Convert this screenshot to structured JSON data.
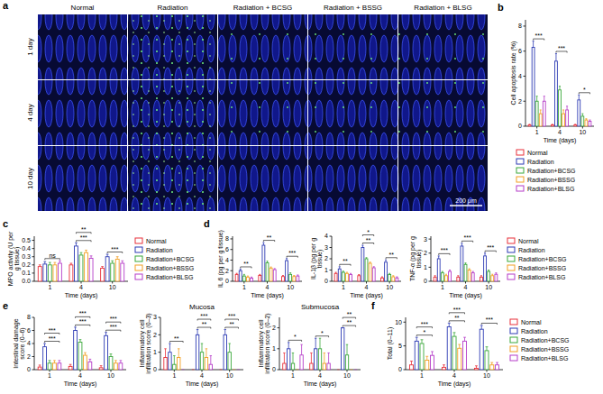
{
  "image_panel": {
    "panel": "a",
    "columns": [
      "Normal",
      "Radiation",
      "Radiation + BCSG",
      "Radiation + BSSG",
      "Radiation + BLSG"
    ],
    "rows": [
      "1 day",
      "4 day",
      "10 day"
    ],
    "scale_bar": "200 μm"
  },
  "chart_data": [
    {
      "type": "bar",
      "panel": "b",
      "y_label": "Cell apoptosis rate (%)",
      "x_label": "Time (days)",
      "categories": [
        "1",
        "4",
        "10"
      ],
      "ylim": [
        0,
        8.5
      ],
      "yticks": [
        0,
        2,
        4,
        6,
        8
      ],
      "legend": "bottom",
      "series": [
        {
          "name": "Normal",
          "color": "#e8303a",
          "values": [
            0.1,
            0.1,
            0.1
          ],
          "errors": [
            0.05,
            0.05,
            0.05
          ]
        },
        {
          "name": "Radiation",
          "color": "#2d3bb4",
          "values": [
            6.3,
            5.2,
            2.1
          ],
          "errors": [
            0.5,
            0.6,
            0.4
          ]
        },
        {
          "name": "Radiation+BCSG",
          "color": "#3aa83a",
          "values": [
            2.0,
            2.9,
            0.8
          ],
          "errors": [
            0.4,
            0.3,
            0.2
          ]
        },
        {
          "name": "Radiation+BSSG",
          "color": "#f2a024",
          "values": [
            1.0,
            1.0,
            0.5
          ],
          "errors": [
            0.3,
            0.3,
            0.1
          ]
        },
        {
          "name": "Radiation+BLSG",
          "color": "#b53cc8",
          "values": [
            2.0,
            1.3,
            0.4
          ],
          "errors": [
            0.4,
            0.3,
            0.1
          ]
        }
      ],
      "annotations": [
        {
          "x": "1",
          "text": "***"
        },
        {
          "x": "4",
          "text": "***"
        },
        {
          "x": "10",
          "text": "*"
        }
      ]
    },
    {
      "type": "bar",
      "panel": "c",
      "y_label": "MPO activity (U per g tissue)",
      "x_label": "Time (days)",
      "categories": [
        "1",
        "4",
        "10"
      ],
      "ylim": [
        0,
        0.55
      ],
      "yticks": [
        {
          "value": 0,
          "label": "0.0"
        },
        {
          "value": 0.1,
          "label": "0.1"
        },
        {
          "value": 0.2,
          "label": "0.2"
        },
        {
          "value": 0.3,
          "label": "0.3"
        },
        {
          "value": 0.4,
          "label": "0.4"
        },
        {
          "value": 0.5,
          "label": "0.5"
        }
      ],
      "legend": "right",
      "series": [
        {
          "name": "Normal",
          "color": "#e8303a",
          "values": [
            0.18,
            0.2,
            0.16
          ],
          "errors": [
            0.02,
            0.02,
            0.02
          ]
        },
        {
          "name": "Radiation",
          "color": "#2d3bb4",
          "values": [
            0.21,
            0.43,
            0.3
          ],
          "errors": [
            0.03,
            0.04,
            0.03
          ]
        },
        {
          "name": "Radiation+BCSG",
          "color": "#3aa83a",
          "values": [
            0.2,
            0.32,
            0.22
          ],
          "errors": [
            0.03,
            0.03,
            0.03
          ]
        },
        {
          "name": "Radiation+BSSG",
          "color": "#f2a024",
          "values": [
            0.2,
            0.35,
            0.27
          ],
          "errors": [
            0.03,
            0.03,
            0.03
          ]
        },
        {
          "name": "Radiation+BLSG",
          "color": "#b53cc8",
          "values": [
            0.22,
            0.28,
            0.22
          ],
          "errors": [
            0.03,
            0.03,
            0.03
          ]
        }
      ],
      "annotations": [
        {
          "x": "1",
          "text": "ns"
        },
        {
          "x": "4",
          "text": "***"
        },
        {
          "x": "4",
          "text": "**"
        },
        {
          "x": "10",
          "text": "***"
        }
      ]
    },
    {
      "type": "bar",
      "panel": "d",
      "y_label": "IL 6 (pg per g tissue)",
      "x_label": "Time (days)",
      "categories": [
        "1",
        "4",
        "10"
      ],
      "ylim": [
        0,
        8.5
      ],
      "yticks": [
        0,
        2,
        4,
        6,
        8
      ],
      "series": [
        {
          "name": "Normal",
          "color": "#e8303a",
          "values": [
            1.3,
            1.1,
            0.9
          ],
          "errors": [
            0.2,
            0.2,
            0.2
          ]
        },
        {
          "name": "Radiation",
          "color": "#2d3bb4",
          "values": [
            2.0,
            6.8,
            3.9
          ],
          "errors": [
            0.3,
            0.5,
            0.4
          ]
        },
        {
          "name": "Radiation+BCSG",
          "color": "#3aa83a",
          "values": [
            1.0,
            3.5,
            1.3
          ],
          "errors": [
            0.3,
            0.3,
            0.3
          ]
        },
        {
          "name": "Radiation+BSSG",
          "color": "#f2a024",
          "values": [
            0.8,
            2.5,
            0.9
          ],
          "errors": [
            0.2,
            0.2,
            0.2
          ]
        },
        {
          "name": "Radiation+BLSG",
          "color": "#b53cc8",
          "values": [
            0.6,
            2.2,
            1.0
          ],
          "errors": [
            0.2,
            0.2,
            0.2
          ]
        }
      ],
      "annotations": [
        {
          "x": "1",
          "text": "**"
        },
        {
          "x": "4",
          "text": "**"
        },
        {
          "x": "10",
          "text": "***"
        }
      ]
    },
    {
      "type": "bar",
      "y_label": "IL-1β (pg per g tissue)",
      "x_label": "Time (days)",
      "categories": [
        "1",
        "4",
        "10"
      ],
      "ylim": [
        0,
        4
      ],
      "yticks": [
        0,
        1,
        2,
        3,
        4
      ],
      "series": [
        {
          "name": "Normal",
          "color": "#e8303a",
          "values": [
            0.7,
            0.5,
            0.3
          ],
          "errors": [
            0.1,
            0.1,
            0.1
          ]
        },
        {
          "name": "Radiation",
          "color": "#2d3bb4",
          "values": [
            1.1,
            3.0,
            1.7
          ],
          "errors": [
            0.2,
            0.2,
            0.2
          ]
        },
        {
          "name": "Radiation+BCSG",
          "color": "#3aa83a",
          "values": [
            0.8,
            2.0,
            0.6
          ],
          "errors": [
            0.1,
            0.1,
            0.1
          ]
        },
        {
          "name": "Radiation+BSSG",
          "color": "#f2a024",
          "values": [
            0.7,
            1.6,
            0.4
          ],
          "errors": [
            0.1,
            0.1,
            0.1
          ]
        },
        {
          "name": "Radiation+BLSG",
          "color": "#b53cc8",
          "values": [
            0.6,
            1.2,
            0.3
          ],
          "errors": [
            0.1,
            0.1,
            0.1
          ]
        }
      ],
      "annotations": [
        {
          "x": "1",
          "text": "**"
        },
        {
          "x": "4",
          "text": "**"
        },
        {
          "x": "4",
          "text": "*"
        },
        {
          "x": "10",
          "text": "**"
        }
      ]
    },
    {
      "type": "bar",
      "y_label": "TNF-α (pg per g tissue)",
      "x_label": "Time (days)",
      "categories": [
        "1",
        "4",
        "10"
      ],
      "ylim": [
        0,
        3.2
      ],
      "yticks": [
        0,
        1,
        2,
        3
      ],
      "legend": "right",
      "series": [
        {
          "name": "Normal",
          "color": "#e8303a",
          "values": [
            0.3,
            0.3,
            0.3
          ],
          "errors": [
            0.1,
            0.1,
            0.1
          ]
        },
        {
          "name": "Radiation",
          "color": "#2d3bb4",
          "values": [
            1.6,
            2.5,
            1.8
          ],
          "errors": [
            0.2,
            0.2,
            0.2
          ]
        },
        {
          "name": "Radiation+BCSG",
          "color": "#3aa83a",
          "values": [
            0.6,
            1.2,
            0.7
          ],
          "errors": [
            0.1,
            0.1,
            0.1
          ]
        },
        {
          "name": "Radiation+BSSG",
          "color": "#f2a024",
          "values": [
            0.4,
            0.8,
            0.4
          ],
          "errors": [
            0.1,
            0.1,
            0.1
          ]
        },
        {
          "name": "Radiation+BLSG",
          "color": "#b53cc8",
          "values": [
            0.7,
            0.6,
            0.5
          ],
          "errors": [
            0.1,
            0.1,
            0.1
          ]
        }
      ],
      "annotations": [
        {
          "x": "1",
          "text": "***"
        },
        {
          "x": "4",
          "text": "***"
        },
        {
          "x": "10",
          "text": "***"
        }
      ]
    },
    {
      "type": "bar",
      "panel": "e",
      "y_label": "Intestinal damage score (0–6)",
      "x_label": "Time (days)",
      "categories": [
        "1",
        "4",
        "10"
      ],
      "ylim": [
        0,
        8
      ],
      "yticks": [
        0,
        2,
        4,
        6,
        8
      ],
      "series": [
        {
          "name": "Normal",
          "color": "#e8303a",
          "values": [
            0.4,
            0.5,
            0.3
          ],
          "errors": [
            0.3,
            0.3,
            0.3
          ]
        },
        {
          "name": "Radiation",
          "color": "#2d3bb4",
          "values": [
            3.5,
            6.0,
            5.2
          ],
          "errors": [
            0.5,
            0.5,
            0.5
          ]
        },
        {
          "name": "Radiation+BCSG",
          "color": "#3aa83a",
          "values": [
            1.0,
            4.2,
            2.0
          ],
          "errors": [
            0.4,
            0.4,
            0.4
          ]
        },
        {
          "name": "Radiation+BSSG",
          "color": "#f2a024",
          "values": [
            1.0,
            2.2,
            1.0
          ],
          "errors": [
            0.4,
            0.4,
            0.4
          ]
        },
        {
          "name": "Radiation+BLSG",
          "color": "#b53cc8",
          "values": [
            1.0,
            1.2,
            1.0
          ],
          "errors": [
            0.4,
            0.4,
            0.4
          ]
        }
      ],
      "annotations": [
        {
          "x": "1",
          "text": "***"
        },
        {
          "x": "1",
          "text": "***"
        },
        {
          "x": "4",
          "text": "***"
        },
        {
          "x": "4",
          "text": "***"
        },
        {
          "x": "10",
          "text": "***"
        },
        {
          "x": "10",
          "text": "***"
        }
      ]
    },
    {
      "type": "bar",
      "title": "Mucosa",
      "y_label": "Inflammatory cell infiltration score (0–3)",
      "x_label": "Time (days)",
      "categories": [
        "1",
        "4",
        "10"
      ],
      "ylim": [
        0,
        3
      ],
      "yticks": [
        0,
        1,
        2,
        3
      ],
      "series": [
        {
          "name": "Normal",
          "color": "#e8303a",
          "values": [
            0.7,
            0.0,
            0.0
          ],
          "errors": [
            0.5,
            0.0,
            0.0
          ]
        },
        {
          "name": "Radiation",
          "color": "#2d3bb4",
          "values": [
            1.0,
            2.0,
            2.0
          ],
          "errors": [
            0.5,
            0.3,
            0.3
          ]
        },
        {
          "name": "Radiation+BCSG",
          "color": "#3aa83a",
          "values": [
            0.3,
            1.0,
            1.0
          ],
          "errors": [
            0.5,
            0.5,
            0.5
          ]
        },
        {
          "name": "Radiation+BSSG",
          "color": "#f2a024",
          "values": [
            0.7,
            0.7,
            0.0
          ],
          "errors": [
            0.5,
            0.5,
            0.0
          ]
        },
        {
          "name": "Radiation+BLSG",
          "color": "#b53cc8",
          "values": [
            0.0,
            0.3,
            0.0
          ],
          "errors": [
            0.0,
            0.5,
            0.0
          ]
        }
      ],
      "annotations": [
        {
          "x": "1",
          "text": "**"
        },
        {
          "x": "4",
          "text": "**"
        },
        {
          "x": "4",
          "text": "***"
        },
        {
          "x": "10",
          "text": "**"
        },
        {
          "x": "10",
          "text": "***"
        }
      ]
    },
    {
      "type": "bar",
      "title": "Submucosa",
      "y_label": "Inflammatory cell infiltration score (0–2)",
      "x_label": "Time (days)",
      "categories": [
        "1",
        "4",
        "10"
      ],
      "ylim": [
        0,
        2.5
      ],
      "yticks": [
        0,
        1,
        2
      ],
      "series": [
        {
          "name": "Normal",
          "color": "#e8303a",
          "values": [
            0.3,
            0.3,
            0.0
          ],
          "errors": [
            0.5,
            0.5,
            0.0
          ]
        },
        {
          "name": "Radiation",
          "color": "#2d3bb4",
          "values": [
            1.0,
            1.0,
            2.0
          ],
          "errors": [
            0.3,
            0.5,
            0.0
          ]
        },
        {
          "name": "Radiation+BCSG",
          "color": "#3aa83a",
          "values": [
            0.3,
            1.0,
            0.7
          ],
          "errors": [
            0.5,
            0.5,
            0.5
          ]
        },
        {
          "name": "Radiation+BSSG",
          "color": "#f2a024",
          "values": [
            0.0,
            0.3,
            0.0
          ],
          "errors": [
            0.0,
            0.5,
            0.0
          ]
        },
        {
          "name": "Radiation+BLSG",
          "color": "#b53cc8",
          "values": [
            0.7,
            0.3,
            0.0
          ],
          "errors": [
            0.5,
            0.5,
            0.0
          ]
        }
      ],
      "annotations": [
        {
          "x": "1",
          "text": "*"
        },
        {
          "x": "4",
          "text": "*"
        },
        {
          "x": "10",
          "text": "**"
        },
        {
          "x": "10",
          "text": "**"
        }
      ]
    },
    {
      "type": "bar",
      "panel": "f",
      "y_label": "Total (0–11)",
      "x_label": "Time (days)",
      "categories": [
        "1",
        "4",
        "10"
      ],
      "ylim": [
        0,
        11
      ],
      "yticks": [
        0,
        5,
        10
      ],
      "legend": "right",
      "series": [
        {
          "name": "Normal",
          "color": "#e8303a",
          "values": [
            1.0,
            0.5,
            0.3
          ],
          "errors": [
            0.8,
            0.5,
            0.5
          ]
        },
        {
          "name": "Radiation",
          "color": "#2d3bb4",
          "values": [
            6.0,
            9.0,
            8.5
          ],
          "errors": [
            0.8,
            0.8,
            0.8
          ]
        },
        {
          "name": "Radiation+BCSG",
          "color": "#3aa83a",
          "values": [
            5.5,
            7.0,
            4.0
          ],
          "errors": [
            0.8,
            0.8,
            0.8
          ]
        },
        {
          "name": "Radiation+BSSG",
          "color": "#f2a024",
          "values": [
            2.0,
            4.5,
            1.0
          ],
          "errors": [
            0.8,
            0.8,
            0.5
          ]
        },
        {
          "name": "Radiation+BLSG",
          "color": "#b53cc8",
          "values": [
            3.0,
            6.0,
            1.0
          ],
          "errors": [
            0.8,
            0.8,
            0.5
          ]
        }
      ],
      "annotations": [
        {
          "x": "1",
          "text": "*"
        },
        {
          "x": "1",
          "text": "***"
        },
        {
          "x": "4",
          "text": "**"
        },
        {
          "x": "4",
          "text": "***"
        },
        {
          "x": "10",
          "text": "***"
        }
      ]
    }
  ]
}
